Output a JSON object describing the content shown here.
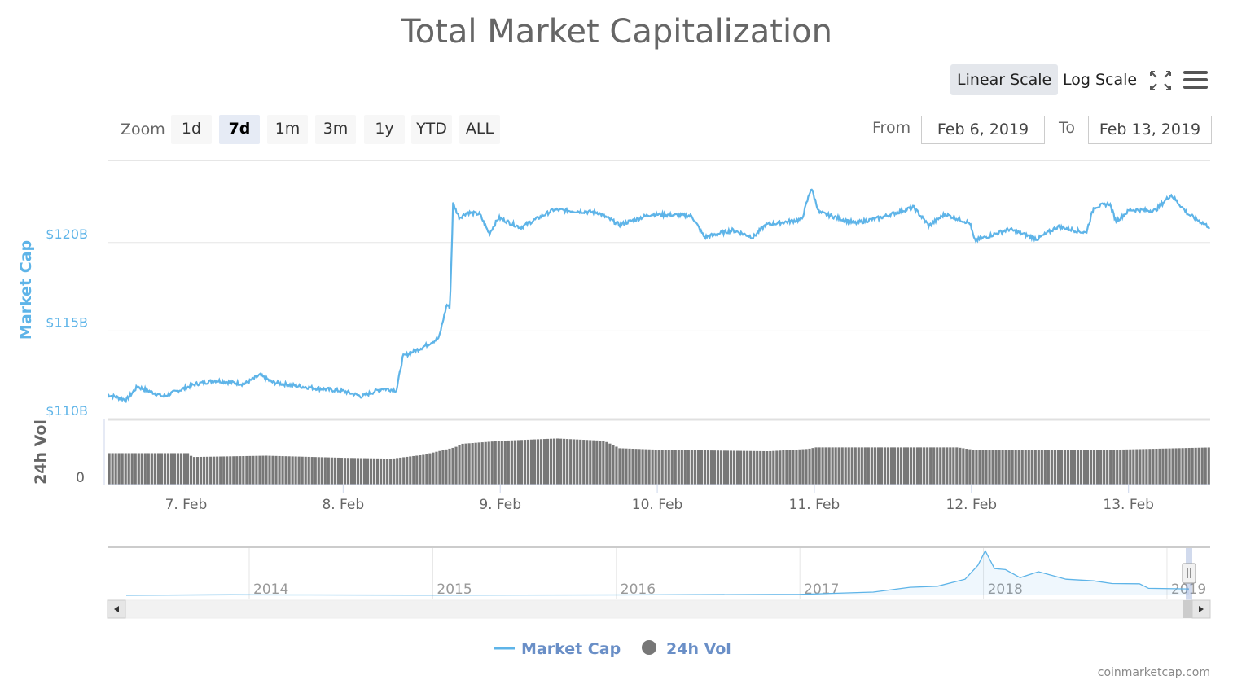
{
  "chart_data": {
    "type": "line",
    "title": "Total Market Capitalization",
    "scale_buttons": {
      "linear": "Linear Scale",
      "log": "Log Scale",
      "selected": "linear"
    },
    "range_selector": {
      "label": "Zoom",
      "buttons": [
        "1d",
        "7d",
        "1m",
        "3m",
        "1y",
        "YTD",
        "ALL"
      ],
      "selected": "7d",
      "from_label": "From",
      "from": "Feb 6, 2019",
      "to_label": "To",
      "to": "Feb 13, 2019"
    },
    "x_unit": "day of February 2019",
    "xlim": [
      6.5,
      13.52
    ],
    "x_ticks": [
      {
        "day": 7,
        "label": "7. Feb"
      },
      {
        "day": 8,
        "label": "8. Feb"
      },
      {
        "day": 9,
        "label": "9. Feb"
      },
      {
        "day": 10,
        "label": "10. Feb"
      },
      {
        "day": 11,
        "label": "11. Feb"
      },
      {
        "day": 12,
        "label": "12. Feb"
      },
      {
        "day": 13,
        "label": "13. Feb"
      }
    ],
    "y_axis": {
      "label": "Market Cap",
      "unit": "$B",
      "ylim": [
        110,
        124.5
      ],
      "ticks": [
        {
          "v": 110,
          "label": "$110B"
        },
        {
          "v": 115,
          "label": "$115B"
        },
        {
          "v": 120,
          "label": "$120B"
        }
      ],
      "grid": true
    },
    "vol_axis": {
      "label": "24h Vol",
      "unit": "$B (est.)",
      "ylim": [
        0,
        36
      ],
      "ticks": [
        {
          "v": 0,
          "label": "0"
        }
      ]
    },
    "series": [
      {
        "name": "Market Cap",
        "type": "line",
        "color": "#5eb4e8",
        "points": [
          [
            6.5,
            111.4
          ],
          [
            6.62,
            111.1
          ],
          [
            6.69,
            111.85
          ],
          [
            6.855,
            111.3
          ],
          [
            7.06,
            112.0
          ],
          [
            7.19,
            112.2
          ],
          [
            7.37,
            112.0
          ],
          [
            7.47,
            112.5
          ],
          [
            7.55,
            112.1
          ],
          [
            7.74,
            111.85
          ],
          [
            8.0,
            111.6
          ],
          [
            8.12,
            111.3
          ],
          [
            8.25,
            111.75
          ],
          [
            8.34,
            111.65
          ],
          [
            8.38,
            113.55
          ],
          [
            8.51,
            114.1
          ],
          [
            8.61,
            114.6
          ],
          [
            8.66,
            116.5
          ],
          [
            8.68,
            116.3
          ],
          [
            8.7,
            122.2
          ],
          [
            8.74,
            121.4
          ],
          [
            8.79,
            121.7
          ],
          [
            8.87,
            121.6
          ],
          [
            8.93,
            120.5
          ],
          [
            8.99,
            121.4
          ],
          [
            9.13,
            120.85
          ],
          [
            9.34,
            121.85
          ],
          [
            9.62,
            121.7
          ],
          [
            9.76,
            121.0
          ],
          [
            9.96,
            121.6
          ],
          [
            10.22,
            121.5
          ],
          [
            10.3,
            120.3
          ],
          [
            10.48,
            120.7
          ],
          [
            10.61,
            120.3
          ],
          [
            10.69,
            121.0
          ],
          [
            10.92,
            121.3
          ],
          [
            10.98,
            123.1
          ],
          [
            11.03,
            121.7
          ],
          [
            11.26,
            121.1
          ],
          [
            11.42,
            121.4
          ],
          [
            11.63,
            122.0
          ],
          [
            11.73,
            120.95
          ],
          [
            11.83,
            121.6
          ],
          [
            11.99,
            121.1
          ],
          [
            12.02,
            120.1
          ],
          [
            12.24,
            120.75
          ],
          [
            12.42,
            120.2
          ],
          [
            12.55,
            120.9
          ],
          [
            12.73,
            120.55
          ],
          [
            12.78,
            122.0
          ],
          [
            12.88,
            122.2
          ],
          [
            12.92,
            121.2
          ],
          [
            13.01,
            121.85
          ],
          [
            13.17,
            121.8
          ],
          [
            13.27,
            122.7
          ],
          [
            13.38,
            121.6
          ],
          [
            13.52,
            120.85
          ]
        ]
      },
      {
        "name": "24h Vol",
        "type": "column",
        "color": "#777777",
        "points": [
          [
            6.5,
            19
          ],
          [
            7.0,
            19
          ],
          [
            7.03,
            16.7
          ],
          [
            7.5,
            17.5
          ],
          [
            8.0,
            16.2
          ],
          [
            8.3,
            15.7
          ],
          [
            8.5,
            18
          ],
          [
            8.7,
            22.5
          ],
          [
            8.75,
            24.7
          ],
          [
            9.0,
            26.5
          ],
          [
            9.35,
            27.9
          ],
          [
            9.65,
            26.5
          ],
          [
            9.75,
            22
          ],
          [
            10.0,
            21.1
          ],
          [
            10.7,
            20.2
          ],
          [
            10.95,
            21.6
          ],
          [
            11.0,
            22.5
          ],
          [
            11.9,
            22.5
          ],
          [
            12.0,
            21.1
          ],
          [
            12.9,
            21.1
          ],
          [
            13.52,
            22.5
          ]
        ]
      }
    ],
    "navigator": {
      "x_ticks": [
        "2014",
        "2015",
        "2016",
        "2017",
        "2018",
        "2019"
      ],
      "xlim": [
        2013.33,
        2019.12
      ],
      "ylim": [
        0,
        850
      ],
      "points": [
        [
          2013.33,
          1.5
        ],
        [
          2013.9,
          10
        ],
        [
          2014.2,
          8
        ],
        [
          2015.0,
          4
        ],
        [
          2016.0,
          7
        ],
        [
          2017.0,
          18
        ],
        [
          2017.4,
          60
        ],
        [
          2017.6,
          150
        ],
        [
          2017.75,
          170
        ],
        [
          2017.9,
          300
        ],
        [
          2017.97,
          560
        ],
        [
          2018.01,
          830
        ],
        [
          2018.06,
          500
        ],
        [
          2018.12,
          480
        ],
        [
          2018.2,
          330
        ],
        [
          2018.3,
          440
        ],
        [
          2018.45,
          300
        ],
        [
          2018.6,
          270
        ],
        [
          2018.7,
          220
        ],
        [
          2018.85,
          215
        ],
        [
          2018.9,
          130
        ],
        [
          2019.12,
          120
        ]
      ]
    },
    "legend": {
      "position": "bottom-center",
      "items": [
        "Market Cap",
        "24h Vol"
      ]
    },
    "credits": "coinmarketcap.com"
  }
}
